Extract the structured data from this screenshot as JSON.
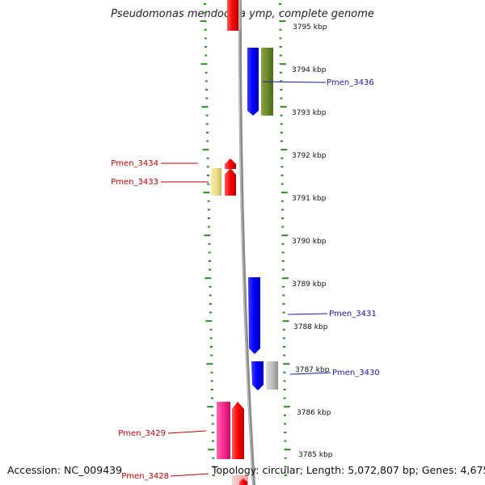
{
  "title": "Pseudomonas mendocina ymp, complete genome",
  "footer": {
    "accession": "Accession: NC_009439",
    "summary": "Topology: circular; Length: 5,072,807 bp; Genes: 4,675"
  },
  "colors": {
    "tick": "#2a8a1f",
    "backbone": "#8a8a8a",
    "label_forward": "#c00000",
    "label_reverse": "#1a1aa0",
    "gene_red": "#ff1a1a",
    "gene_blue": "#1a1aff",
    "gene_olive": "#6b8a2a",
    "gene_khaki": "#ece08a",
    "gene_magenta": "#ff3399",
    "gene_grey": "#b8b8b8"
  },
  "scale": {
    "unit": "kbp",
    "labels": [
      "3795 kbp",
      "3794 kbp",
      "3793 kbp",
      "3792 kbp",
      "3791 kbp",
      "3790 kbp",
      "3789 kbp",
      "3788 kbp",
      "3787 kbp",
      "3786 kbp",
      "3785 kbp"
    ]
  },
  "gene_labels": [
    "Pmen_3436",
    "Pmen_3434",
    "Pmen_3433",
    "Pmen_3431",
    "Pmen_3430",
    "Pmen_3429",
    "Pmen_3428"
  ]
}
